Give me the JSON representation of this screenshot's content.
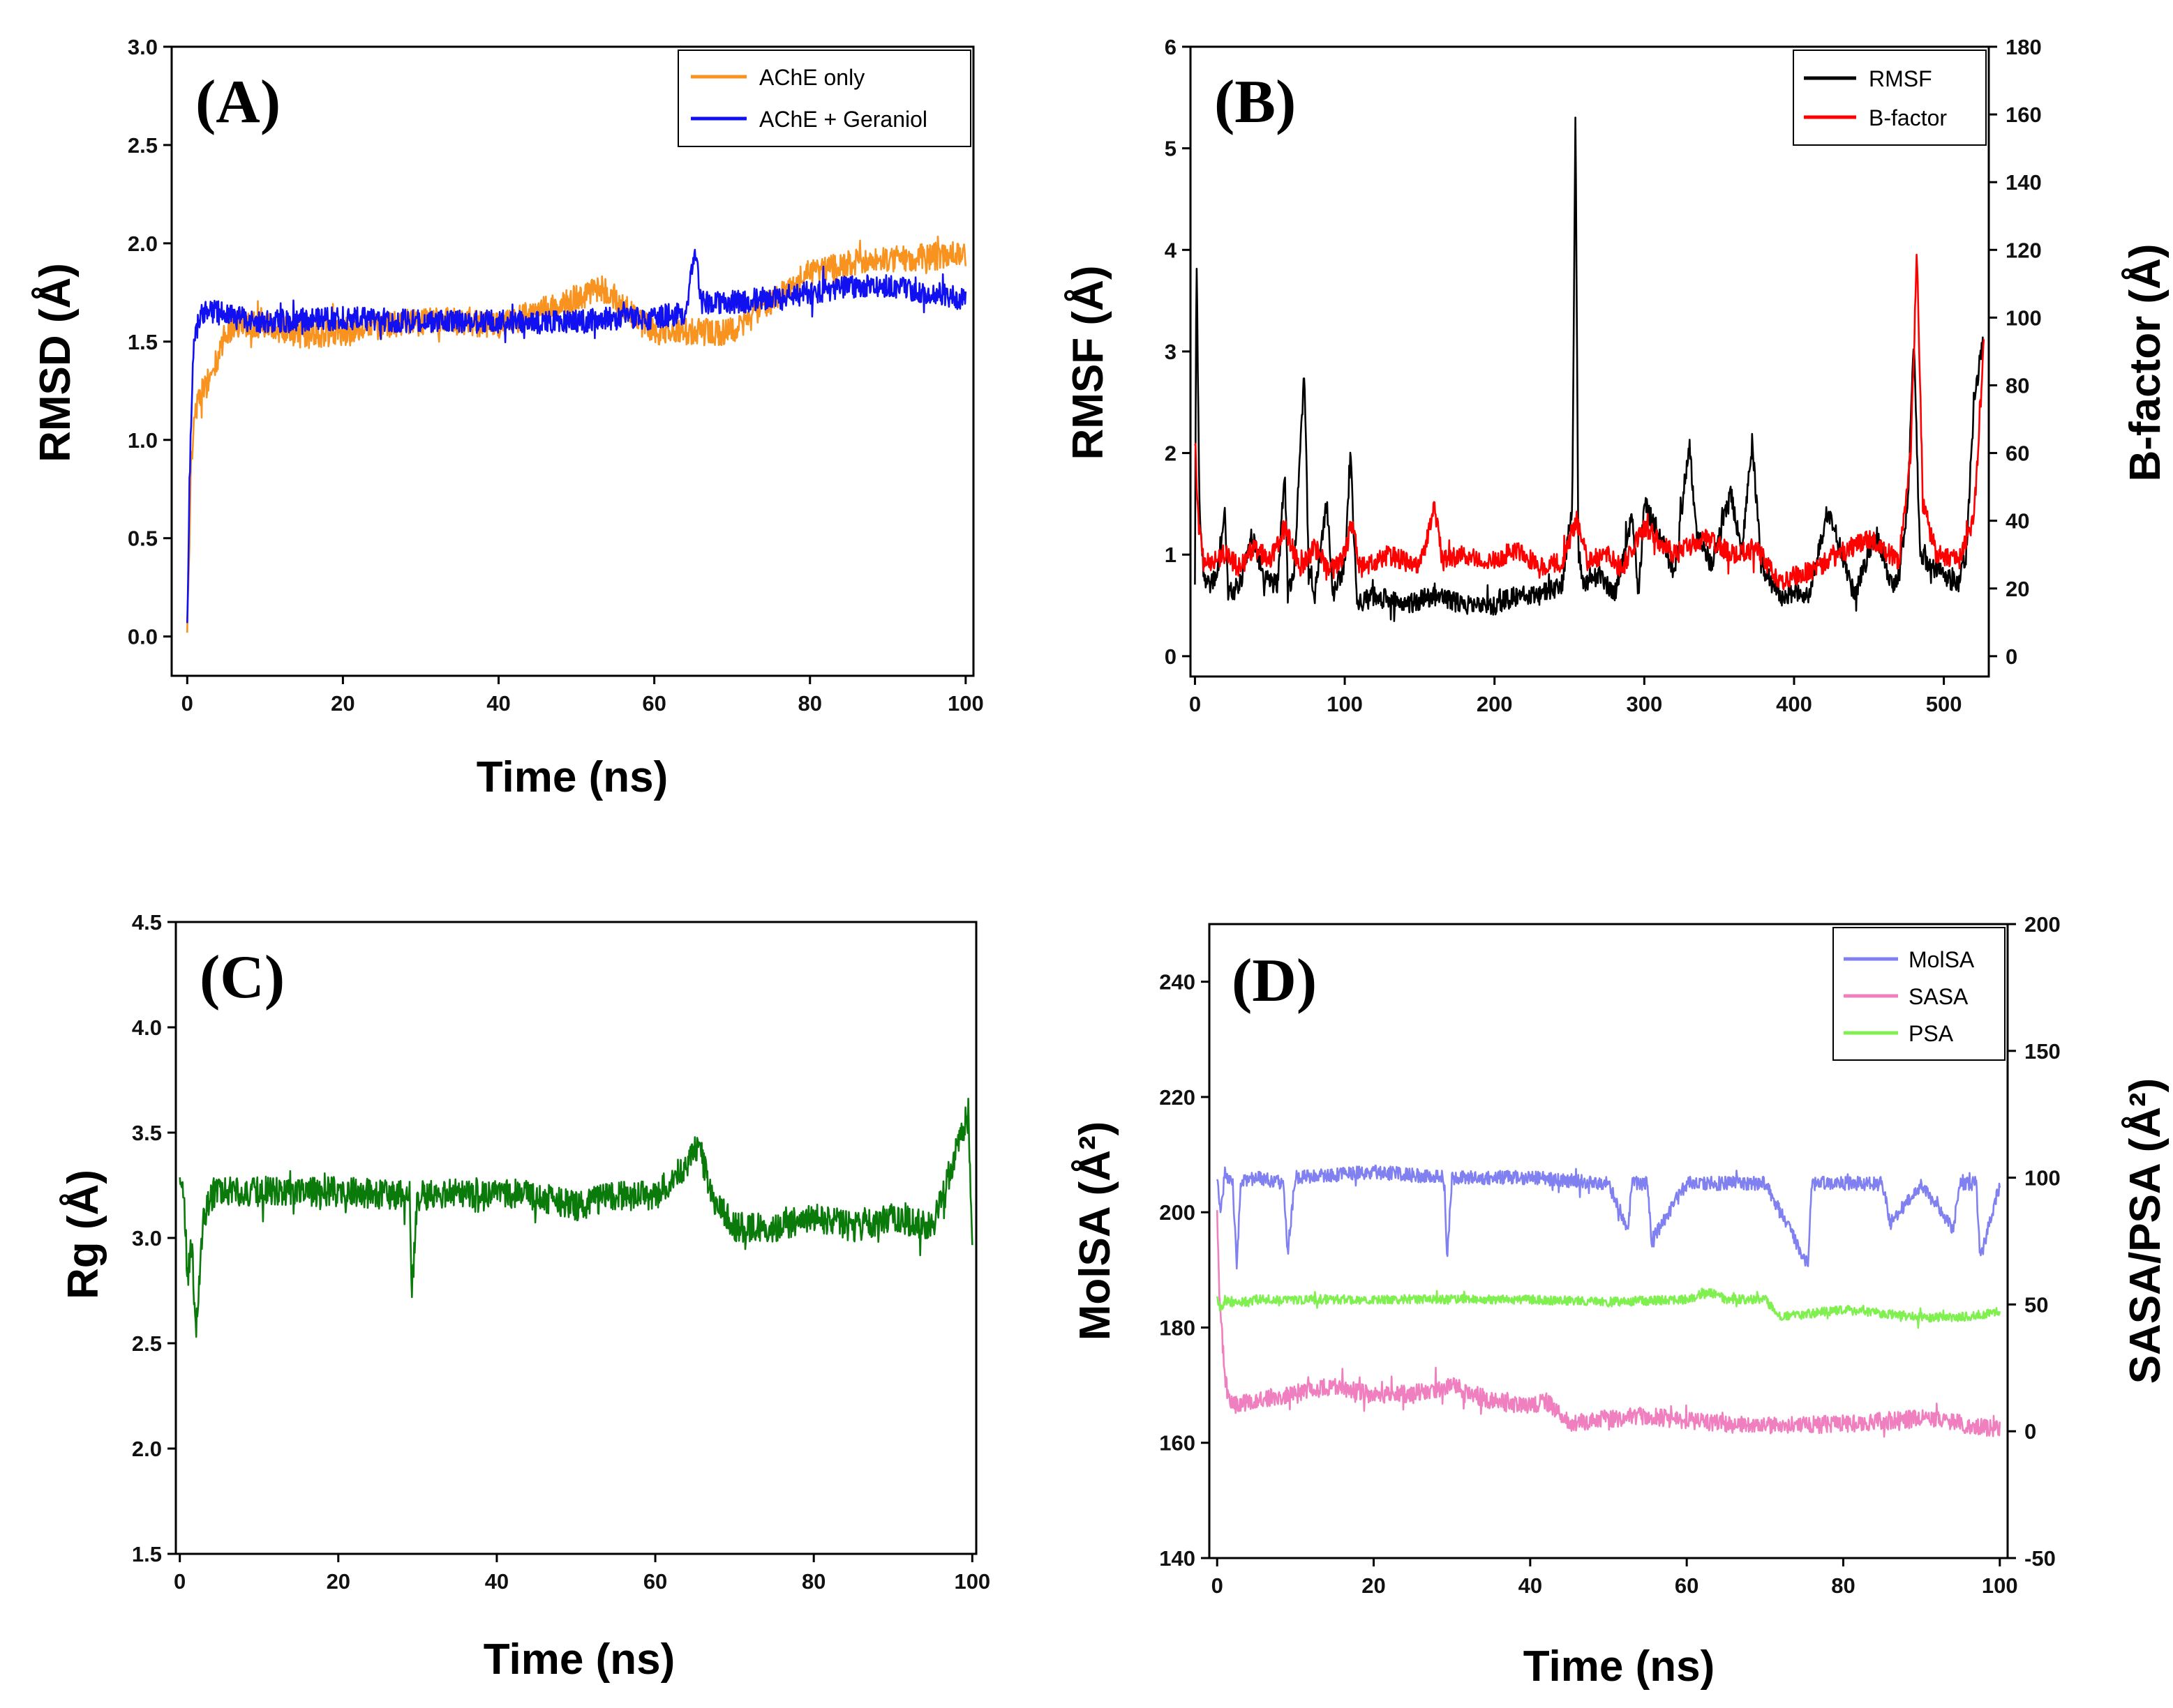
{
  "colors": {
    "ache_only": "#f7931e",
    "ache_geraniol": "#1010f0",
    "rmsf": "#000000",
    "bfactor": "#ff0000",
    "rg": "#0a7a0a",
    "molsa": "#8080f0",
    "sasa": "#f07fc0",
    "psa": "#80f050"
  },
  "chart_data": [
    {
      "id": "A",
      "type": "line",
      "panel_label": "(A)",
      "xlabel": "Time (ns)",
      "ylabel": "RMSD (Å)",
      "xlim": [
        -2,
        101
      ],
      "ylim": [
        -0.2,
        3.0
      ],
      "xticks": [
        "0",
        "20",
        "40",
        "60",
        "80",
        "100"
      ],
      "yticks": [
        "0.0",
        "0.5",
        "1.0",
        "1.5",
        "2.0",
        "2.5",
        "3.0"
      ],
      "legend": [
        "AChE only",
        "AChE + Geraniol"
      ],
      "legend_position": "top-right",
      "series": [
        {
          "name": "AChE only",
          "color": "ache_only",
          "x": [
            0,
            0.5,
            1,
            2,
            3,
            4,
            5,
            7,
            10,
            15,
            20,
            25,
            30,
            35,
            40,
            45,
            50,
            53,
            55,
            58,
            60,
            65,
            70,
            75,
            80,
            85,
            90,
            95,
            100
          ],
          "y": [
            0.0,
            0.9,
            1.15,
            1.25,
            1.32,
            1.42,
            1.55,
            1.6,
            1.58,
            1.53,
            1.55,
            1.58,
            1.6,
            1.6,
            1.58,
            1.65,
            1.72,
            1.78,
            1.72,
            1.6,
            1.55,
            1.55,
            1.55,
            1.7,
            1.85,
            1.9,
            1.92,
            1.93,
            1.95
          ],
          "noise": 0.07
        },
        {
          "name": "AChE + Geraniol",
          "color": "ache_geraniol",
          "x": [
            0,
            0.3,
            0.7,
            1,
            2,
            4,
            6,
            10,
            20,
            30,
            40,
            50,
            55,
            60,
            64,
            65.3,
            66,
            70,
            75,
            80,
            85,
            90,
            95,
            100
          ],
          "y": [
            0.05,
            0.8,
            1.4,
            1.55,
            1.65,
            1.65,
            1.62,
            1.6,
            1.62,
            1.6,
            1.6,
            1.6,
            1.62,
            1.62,
            1.65,
            1.95,
            1.7,
            1.7,
            1.72,
            1.75,
            1.78,
            1.78,
            1.75,
            1.72
          ],
          "noise": 0.06
        }
      ]
    },
    {
      "id": "B",
      "type": "line",
      "panel_label": "(B)",
      "ylabel": "RMSF (Å)",
      "y2label": "B-factor (Å)",
      "xlim": [
        -3,
        530
      ],
      "ylim": [
        -0.2,
        6
      ],
      "y2lim": [
        -6,
        180
      ],
      "xticks": [
        "0",
        "100",
        "200",
        "300",
        "400",
        "500"
      ],
      "yticks": [
        "0",
        "1",
        "2",
        "3",
        "4",
        "5",
        "6"
      ],
      "y2ticks": [
        "0",
        "20",
        "40",
        "60",
        "80",
        "100",
        "120",
        "140",
        "160",
        "180"
      ],
      "legend": [
        "RMSF",
        "B-factor"
      ],
      "legend_position": "top-right",
      "series": [
        {
          "name": "RMSF",
          "color": "rmsf",
          "x": [
            0,
            1,
            3,
            6,
            10,
            15,
            20,
            22,
            30,
            38,
            45,
            55,
            60,
            62,
            66,
            73,
            76,
            80,
            88,
            92,
            100,
            104,
            108,
            120,
            140,
            160,
            180,
            200,
            215,
            230,
            245,
            252,
            254,
            256,
            260,
            270,
            280,
            292,
            296,
            300,
            310,
            320,
            330,
            335,
            345,
            358,
            365,
            372,
            378,
            390,
            400,
            410,
            422,
            428,
            440,
            455,
            465,
            470,
            476,
            480,
            484,
            490,
            500,
            510,
            515,
            520,
            526
          ],
          "y": [
            0.8,
            4.0,
            1.5,
            0.8,
            0.7,
            0.8,
            1.5,
            0.6,
            0.7,
            1.2,
            0.8,
            0.7,
            1.8,
            0.6,
            0.8,
            2.8,
            0.8,
            0.6,
            1.5,
            0.6,
            0.9,
            2.0,
            0.5,
            0.6,
            0.5,
            0.6,
            0.5,
            0.5,
            0.6,
            0.6,
            0.7,
            1.5,
            5.4,
            1.0,
            0.7,
            0.8,
            0.6,
            1.4,
            0.6,
            1.5,
            1.2,
            0.8,
            2.1,
            1.2,
            0.9,
            1.6,
            1.0,
            2.1,
            0.9,
            0.6,
            0.6,
            0.6,
            1.4,
            1.2,
            0.6,
            1.2,
            0.7,
            0.8,
            1.5,
            3.2,
            1.0,
            0.9,
            0.8,
            0.7,
            1.0,
            2.5,
            3.1
          ],
          "noise": 0.1
        },
        {
          "name": "B-factor",
          "color": "bfactor",
          "axis": "y2",
          "x": [
            0,
            2,
            5,
            10,
            20,
            30,
            40,
            50,
            60,
            70,
            80,
            90,
            100,
            105,
            110,
            130,
            150,
            160,
            165,
            180,
            200,
            215,
            230,
            245,
            255,
            262,
            275,
            285,
            300,
            320,
            340,
            360,
            375,
            390,
            410,
            430,
            450,
            470,
            478,
            482,
            486,
            495,
            510,
            520,
            527
          ],
          "y": [
            65,
            40,
            30,
            28,
            30,
            26,
            32,
            28,
            38,
            26,
            32,
            25,
            30,
            40,
            26,
            30,
            26,
            45,
            28,
            30,
            28,
            32,
            26,
            28,
            40,
            28,
            30,
            26,
            38,
            30,
            35,
            30,
            32,
            22,
            25,
            30,
            35,
            28,
            60,
            120,
            45,
            30,
            28,
            40,
            94
          ],
          "noise": 3
        }
      ]
    },
    {
      "id": "C",
      "type": "line",
      "panel_label": "(C)",
      "xlabel": "Time (ns)",
      "ylabel": "Rg (Å)",
      "xlim": [
        -0.5,
        100.5
      ],
      "ylim": [
        1.5,
        4.5
      ],
      "xticks": [
        "0",
        "20",
        "40",
        "60",
        "80",
        "100"
      ],
      "yticks": [
        "1.5",
        "2.0",
        "2.5",
        "3.0",
        "3.5",
        "4.0",
        "4.5"
      ],
      "series": [
        {
          "name": "Rg",
          "color": "rg",
          "x": [
            0,
            0.5,
            1,
            1.5,
            2,
            2.5,
            3,
            4,
            6,
            10,
            20,
            29,
            29.3,
            30,
            40,
            45,
            50,
            55,
            60,
            64,
            65.5,
            67,
            70,
            75,
            80,
            85,
            90,
            95,
            99.5,
            100
          ],
          "y": [
            3.3,
            3.2,
            2.8,
            3.0,
            2.55,
            2.8,
            3.1,
            3.2,
            3.22,
            3.22,
            3.22,
            3.2,
            2.75,
            3.2,
            3.22,
            3.2,
            3.15,
            3.2,
            3.2,
            3.35,
            3.45,
            3.2,
            3.05,
            3.05,
            3.1,
            3.05,
            3.1,
            3.05,
            3.6,
            3.0
          ],
          "noise": 0.07
        }
      ]
    },
    {
      "id": "D",
      "type": "line",
      "panel_label": "(D)",
      "xlabel": "Time (ns)",
      "ylabel": "MolSA (Å²)",
      "y2label": "SASA/PSA (Å²)",
      "xlim": [
        -1,
        101
      ],
      "ylim": [
        140,
        250
      ],
      "y2lim": [
        -50,
        200
      ],
      "xticks": [
        "0",
        "20",
        "40",
        "60",
        "80",
        "100"
      ],
      "yticks": [
        "140",
        "160",
        "180",
        "200",
        "220",
        "240"
      ],
      "y2ticks": [
        "-50",
        "0",
        "50",
        "100",
        "150",
        "200"
      ],
      "legend": [
        "MolSA",
        "SASA",
        "PSA"
      ],
      "legend_position": "top-right",
      "series": [
        {
          "name": "MolSA",
          "color": "molsa",
          "x": [
            0,
            0.5,
            1,
            2,
            2.5,
            3,
            5,
            8.5,
            9,
            10,
            20,
            29,
            29.4,
            30,
            40,
            50,
            52.5,
            53,
            55,
            55.5,
            60,
            70,
            75.5,
            76,
            80,
            85,
            86,
            90,
            94,
            95,
            97,
            97.5,
            100
          ],
          "y": [
            205,
            200,
            207,
            205,
            190,
            205,
            206,
            205,
            193,
            206,
            207,
            206,
            192,
            206,
            206,
            205,
            197,
            205,
            205,
            195,
            205,
            205,
            191,
            205,
            205,
            205,
            198,
            205,
            197,
            205,
            205,
            192,
            205
          ],
          "noise": 1.2
        },
        {
          "name": "SASA",
          "color": "sasa",
          "axis": "y2",
          "x": [
            0,
            0.3,
            1,
            2,
            5,
            10,
            15,
            20,
            25,
            30,
            35,
            40,
            42,
            45,
            50,
            55,
            60,
            65,
            70,
            80,
            90,
            95,
            100
          ],
          "y": [
            85,
            55,
            20,
            10,
            12,
            15,
            18,
            14,
            15,
            18,
            12,
            10,
            12,
            3,
            5,
            6,
            4,
            3,
            2,
            3,
            5,
            3,
            1
          ],
          "noise": 3.5
        },
        {
          "name": "PSA",
          "color": "psa",
          "axis": "y2",
          "x": [
            0,
            0.5,
            1,
            2,
            5,
            10,
            20,
            30,
            40,
            50,
            60,
            63,
            65,
            70,
            72,
            80,
            90,
            95,
            100
          ],
          "y": [
            52,
            48,
            52,
            50,
            52,
            52,
            52,
            52,
            52,
            51,
            52,
            55,
            52,
            52,
            45,
            48,
            45,
            45,
            47
          ],
          "noise": 1.8
        }
      ]
    }
  ]
}
